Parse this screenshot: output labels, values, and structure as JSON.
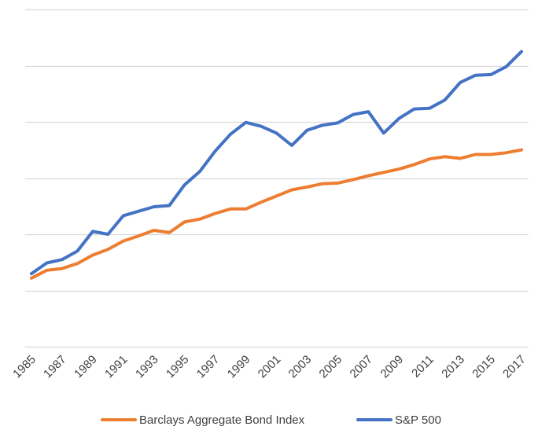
{
  "chart_data": {
    "type": "line",
    "title": "",
    "xlabel": "",
    "ylabel": "",
    "y_tick_labels_shown": false,
    "ylim": [
      0,
      6
    ],
    "y_gridlines": [
      0,
      1,
      2,
      3,
      4,
      5,
      6
    ],
    "grid": "horizontal",
    "legend_position": "bottom",
    "x": [
      1985,
      1986,
      1987,
      1988,
      1989,
      1990,
      1991,
      1992,
      1993,
      1994,
      1995,
      1996,
      1997,
      1998,
      1999,
      2000,
      2001,
      2002,
      2003,
      2004,
      2005,
      2006,
      2007,
      2008,
      2009,
      2010,
      2011,
      2012,
      2013,
      2014,
      2015,
      2016,
      2017
    ],
    "x_tick_labels": [
      "1985",
      "1987",
      "1989",
      "1991",
      "1993",
      "1995",
      "1997",
      "1999",
      "2001",
      "2003",
      "2005",
      "2007",
      "2009",
      "2011",
      "2013",
      "2015",
      "2017"
    ],
    "series": [
      {
        "name": "Barclays Aggregate Bond Index",
        "color": "#ED7D31",
        "values": [
          1.22,
          1.36,
          1.39,
          1.48,
          1.63,
          1.73,
          1.88,
          1.97,
          2.07,
          2.03,
          2.22,
          2.27,
          2.37,
          2.45,
          2.45,
          2.57,
          2.68,
          2.79,
          2.84,
          2.9,
          2.91,
          2.97,
          3.04,
          3.1,
          3.16,
          3.24,
          3.34,
          3.38,
          3.35,
          3.42,
          3.42,
          3.45,
          3.5
        ]
      },
      {
        "name": "S&P 500",
        "color": "#4472C4",
        "values": [
          1.3,
          1.49,
          1.55,
          1.7,
          2.05,
          2.0,
          2.33,
          2.41,
          2.49,
          2.51,
          2.88,
          3.12,
          3.48,
          3.78,
          3.99,
          3.92,
          3.8,
          3.58,
          3.85,
          3.94,
          3.98,
          4.13,
          4.18,
          3.8,
          4.06,
          4.23,
          4.24,
          4.39,
          4.7,
          4.83,
          4.84,
          4.98,
          5.25
        ]
      }
    ]
  }
}
